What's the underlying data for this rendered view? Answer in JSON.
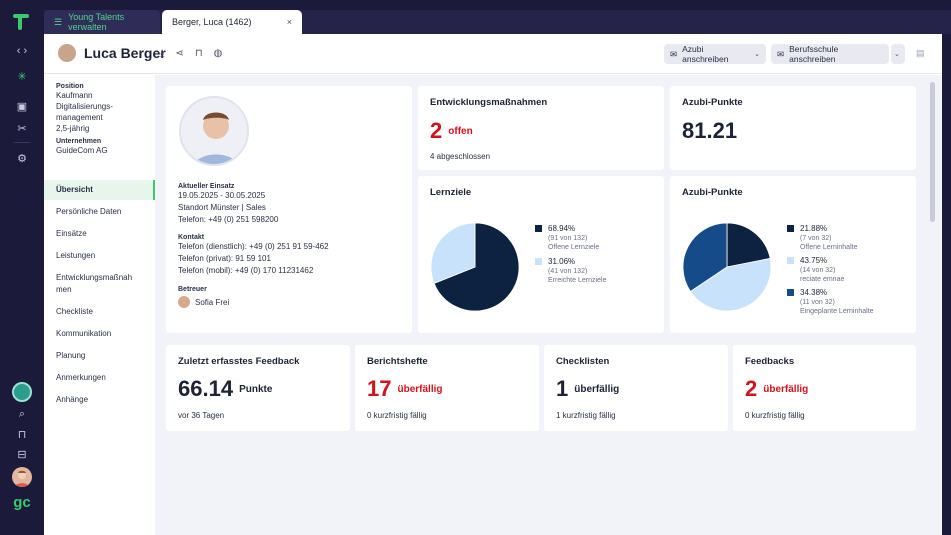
{
  "tabs": {
    "inactive_label": "Young Talents verwalten",
    "active_label": "Berger, Luca (1462)",
    "close_glyph": "×"
  },
  "header": {
    "name": "Luca Berger",
    "btn_azubi": "Azubi anschreiben",
    "btn_schule": "Berufsschule anschreiben"
  },
  "profile": {
    "position_label": "Position",
    "position_value": [
      "Kaufmann",
      "Digitalisierungs-",
      "management",
      "2,5-jährig"
    ],
    "company_label": "Unternehmen",
    "company_value": "GuideCom AG"
  },
  "nav": [
    "Übersicht",
    "Persönliche Daten",
    "Einsätze",
    "Leistungen",
    "Entwicklungsmaßnah",
    "men",
    "Checkliste",
    "Kommunikation",
    "Planung",
    "Anmerkungen",
    "Anhänge"
  ],
  "info": {
    "einsatz_label": "Aktueller Einsatz",
    "einsatz_dates": "19.05.2025 - 30.05.2025",
    "einsatz_place": "Standort Münster | Sales",
    "einsatz_phone": "Telefon: +49 (0) 251 598200",
    "kontakt_label": "Kontakt",
    "phone_work": "Telefon (dienstlich): +49 (0) 251 91 59-462",
    "phone_private": "Telefon (privat): 91 59 101",
    "phone_mobile": "Telefon (mobil): +49 (0) 170 11231462",
    "betreuer_label": "Betreuer",
    "betreuer_name": "Sofia Frei"
  },
  "cards": {
    "massnahmen": {
      "title": "Entwicklungsmaßnahmen",
      "num": "2",
      "num_label": "offen",
      "sub": "4 abgeschlossen"
    },
    "azubi1": {
      "title": "Azubi-Punkte",
      "num": "81.21"
    },
    "lernziele": {
      "title": "Lernziele",
      "legend": [
        {
          "pct": "68.94%",
          "count": "(91 von 132)",
          "label": "Offene Lernziele",
          "color": "#0d2240"
        },
        {
          "pct": "31.06%",
          "count": "(41 von 132)",
          "label": "Erreichte Lernziele",
          "color": "#c9e2fb"
        }
      ]
    },
    "azubi2": {
      "title": "Azubi-Punkte",
      "legend": [
        {
          "pct": "21.88%",
          "count": "(7 von 32)",
          "label": "Offene Lerninhalte",
          "color": "#0d2240"
        },
        {
          "pct": "43.75%",
          "count": "(14 von 32)",
          "label": "reciate emnae",
          "color": "#c9e2fb"
        },
        {
          "pct": "34.38%",
          "count": "(11 von 32)",
          "label": "Eingeplante Lerninhalte",
          "color": "#164b8a"
        }
      ]
    },
    "feedback": {
      "title": "Zuletzt erfasstes Feedback",
      "num": "66.14",
      "num_label": "Punkte",
      "sub": "vor 36 Tagen"
    },
    "berichtshefte": {
      "title": "Berichtshefte",
      "num": "17",
      "num_label": "überfällig",
      "sub": "0 kurzfristig fällig"
    },
    "checklisten": {
      "title": "Checklisten",
      "num": "1",
      "num_label": "überfällig",
      "sub": "1 kurzfristig fällig"
    },
    "feedbacks": {
      "title": "Feedbacks",
      "num": "2",
      "num_label": "überfällig",
      "sub": "0 kurzfristig fällig"
    }
  },
  "chart_data": [
    {
      "type": "pie",
      "labels": [
        "Offene Lernziele",
        "Erreichte Lernziele"
      ],
      "values": [
        68.94,
        31.06
      ]
    },
    {
      "type": "pie",
      "labels": [
        "Offene Lerninhalte",
        "reciate emnae",
        "Eingeplante Lerninhalte"
      ],
      "values": [
        21.88,
        43.75,
        34.38
      ]
    }
  ]
}
